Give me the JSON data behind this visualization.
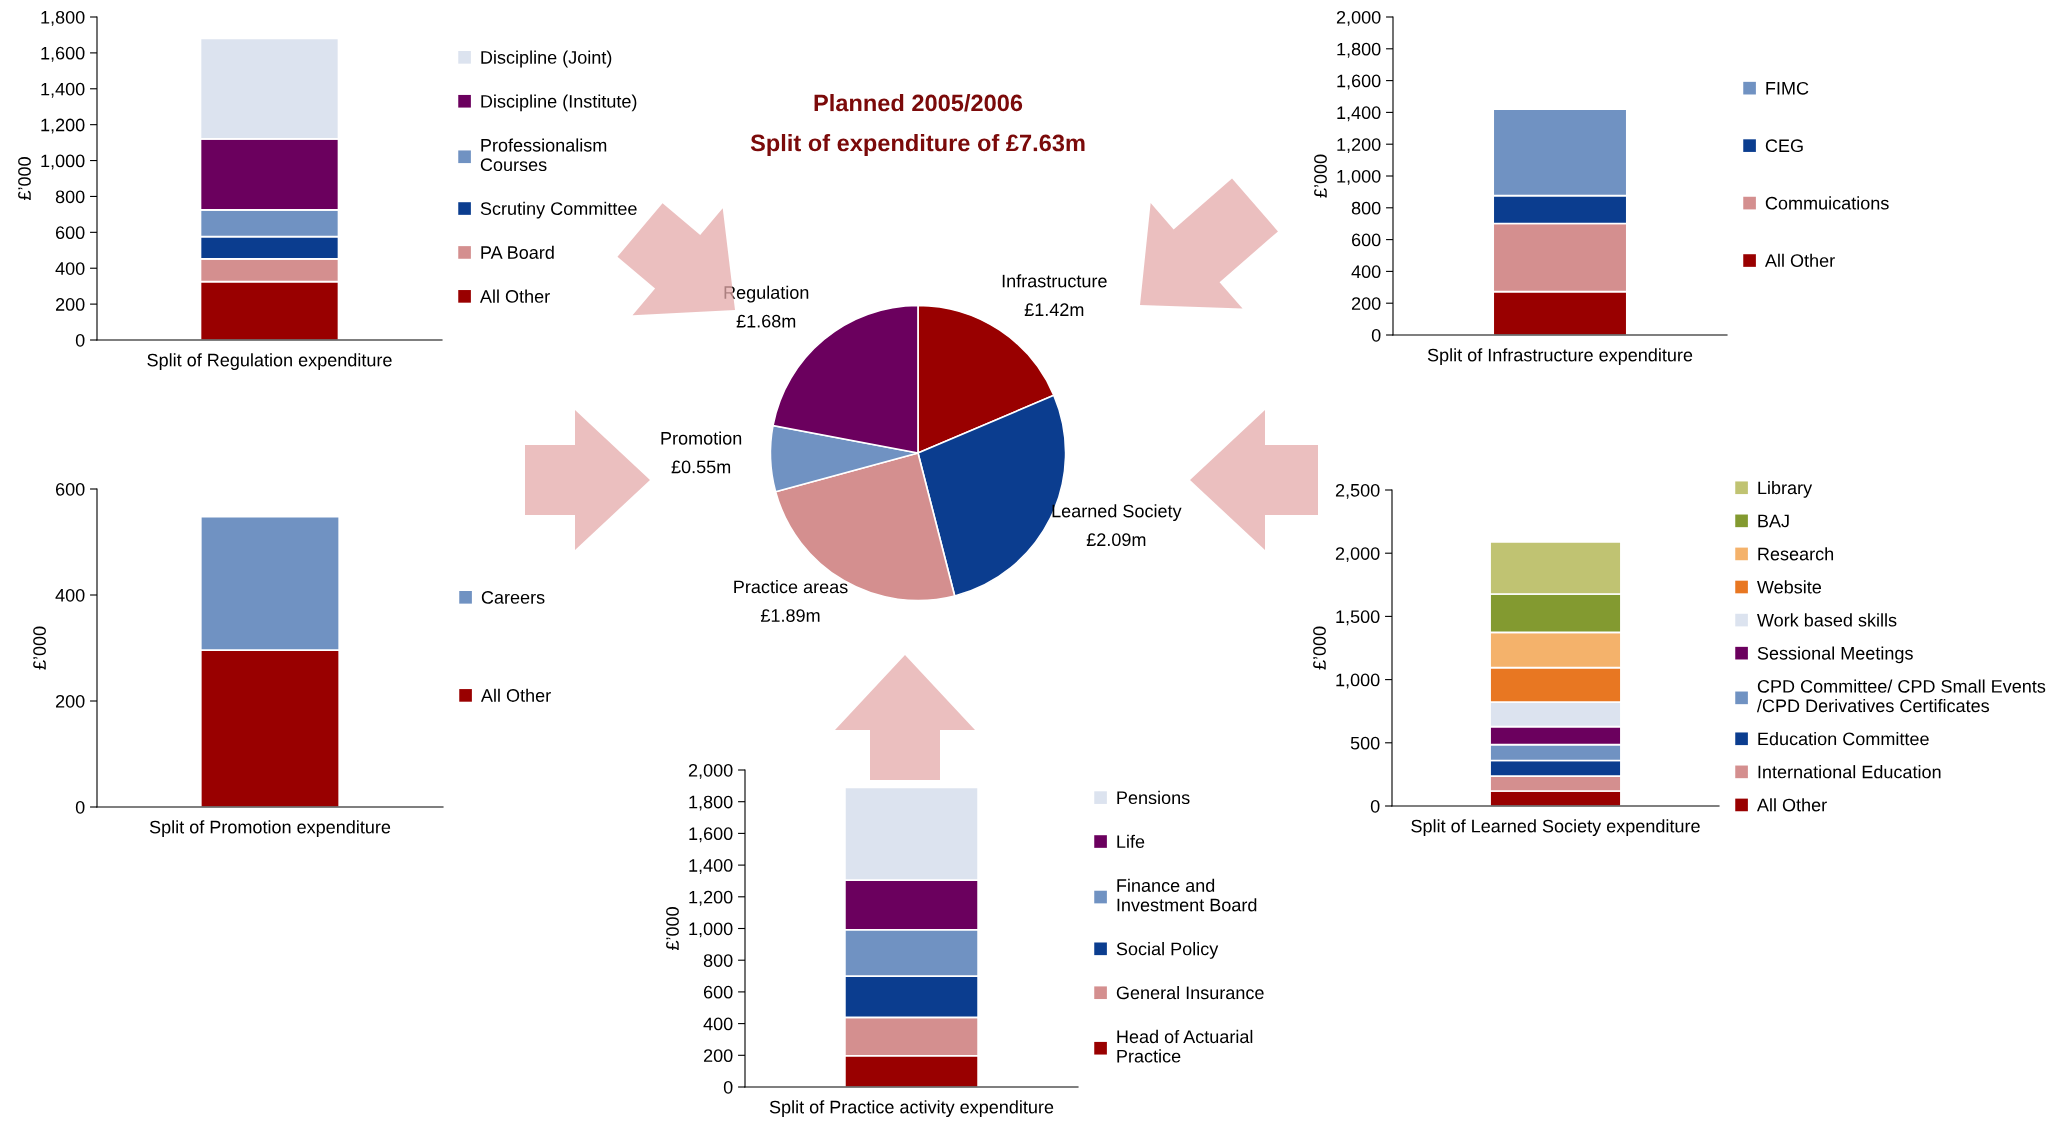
{
  "chart_data": [
    {
      "type": "bar",
      "stacked": true,
      "categories": [
        null
      ],
      "xlabel": "Split of Regulation expenditure",
      "ylabel": "£’000",
      "ylim": [
        0,
        1800
      ],
      "yticks": [
        0,
        200,
        400,
        600,
        800,
        {
          "value": 1000,
          "label": "1,000"
        },
        {
          "value": 1200,
          "label": "1,200"
        },
        {
          "value": 1400,
          "label": "1,400"
        },
        {
          "value": 1600,
          "label": "1,600"
        },
        {
          "value": 1800,
          "label": "1,800"
        }
      ],
      "legend": "right",
      "series": [
        {
          "name": "All Other",
          "color": "#990000",
          "values": [
            325
          ]
        },
        {
          "name": "PA Board",
          "color": "#d48f8f",
          "values": [
            127
          ]
        },
        {
          "name": "Scrutiny Committee",
          "color": "#0b3d8f",
          "values": [
            124
          ]
        },
        {
          "name": "Professionalism\nCourses",
          "color": "#7092c2",
          "values": [
            149
          ]
        },
        {
          "name": "Discipline (Institute)",
          "color": "#6b005e",
          "values": [
            396
          ]
        },
        {
          "name": "Discipline (Joint)",
          "color": "#dce3ef",
          "values": [
            559
          ]
        }
      ]
    },
    {
      "type": "pie",
      "title": "Planned 2005/2006",
      "subtitle": "Split of expenditure of £7.63m",
      "categories": [
        "Infrastructure",
        "Learned Society",
        "Practice areas",
        "Promotion",
        "Regulation"
      ],
      "values": [
        1.42,
        2.09,
        1.89,
        0.55,
        1.68
      ],
      "value_labels": [
        "£1.42m",
        "£2.09m",
        "£1.89m",
        "£0.55m",
        "£1.68m"
      ],
      "colors": [
        "#990000",
        "#0b3d8f",
        "#d48f8f",
        "#7092c2",
        "#6b005e"
      ]
    },
    {
      "type": "bar",
      "stacked": true,
      "categories": [
        null
      ],
      "xlabel": "Split of Infrastructure expenditure",
      "ylabel": "£’000",
      "ylim": [
        0,
        2000
      ],
      "yticks": [
        0,
        200,
        400,
        600,
        800,
        {
          "value": 1000,
          "label": "1,000"
        },
        {
          "value": 1200,
          "label": "1,200"
        },
        {
          "value": 1400,
          "label": "1,400"
        },
        {
          "value": 1600,
          "label": "1,600"
        },
        {
          "value": 1800,
          "label": "1,800"
        },
        {
          "value": 2000,
          "label": "2,000"
        }
      ],
      "legend": "right",
      "series": [
        {
          "name": "All Other",
          "color": "#990000",
          "values": [
            273
          ]
        },
        {
          "name": "Commuications",
          "color": "#d48f8f",
          "values": [
            428
          ]
        },
        {
          "name": "CEG",
          "color": "#0b3d8f",
          "values": [
            176
          ]
        },
        {
          "name": "FIMC",
          "color": "#7092c2",
          "values": [
            543
          ]
        }
      ]
    },
    {
      "type": "bar",
      "stacked": true,
      "categories": [
        null
      ],
      "xlabel": "Split of Promotion expenditure",
      "ylabel": "£’000",
      "ylim": [
        0,
        600
      ],
      "yticks": [
        0,
        200,
        400,
        600
      ],
      "legend": "right",
      "series": [
        {
          "name": "All Other",
          "color": "#990000",
          "values": [
            296
          ]
        },
        {
          "name": "Careers",
          "color": "#7092c2",
          "values": [
            252
          ]
        }
      ]
    },
    {
      "type": "bar",
      "stacked": true,
      "categories": [
        null
      ],
      "xlabel": "Split of Learned Society expenditure",
      "ylabel": "£’000",
      "ylim": [
        0,
        2500
      ],
      "yticks": [
        0,
        500,
        {
          "value": 1000,
          "label": "1,000"
        },
        {
          "value": 1500,
          "label": "1,500"
        },
        {
          "value": 2000,
          "label": "2,000"
        },
        {
          "value": 2500,
          "label": "2,500"
        }
      ],
      "legend": "right",
      "series": [
        {
          "name": "All Other",
          "color": "#990000",
          "values": [
            119
          ]
        },
        {
          "name": "International Education",
          "color": "#d48f8f",
          "values": [
            118
          ]
        },
        {
          "name": "Education Committee",
          "color": "#0b3d8f",
          "values": [
            123
          ]
        },
        {
          "name": "CPD Committee/ CPD Small Events\n/CPD Derivatives Certificates",
          "color": "#7092c2",
          "values": [
            126
          ]
        },
        {
          "name": "Sessional Meetings",
          "color": "#6b005e",
          "values": [
            142
          ]
        },
        {
          "name": "Work based skills",
          "color": "#dce3ef",
          "values": [
            195
          ]
        },
        {
          "name": "Website",
          "color": "#e87722",
          "values": [
            272
          ]
        },
        {
          "name": "Research",
          "color": "#f4b26b",
          "values": [
            279
          ]
        },
        {
          "name": "BAJ",
          "color": "#839a30",
          "values": [
            303
          ]
        },
        {
          "name": "Library",
          "color": "#c0c372",
          "values": [
            413
          ]
        }
      ]
    },
    {
      "type": "bar",
      "stacked": true,
      "categories": [
        null
      ],
      "xlabel": "Split of Practice activity expenditure",
      "ylabel": "£’000",
      "ylim": [
        0,
        2000
      ],
      "yticks": [
        0,
        200,
        400,
        600,
        800,
        {
          "value": 1000,
          "label": "1,000"
        },
        {
          "value": 1200,
          "label": "1,200"
        },
        {
          "value": 1400,
          "label": "1,400"
        },
        {
          "value": 1600,
          "label": "1,600"
        },
        {
          "value": 1800,
          "label": "1,800"
        },
        {
          "value": 2000,
          "label": "2,000"
        }
      ],
      "legend": "right",
      "series": [
        {
          "name": "Head of Actuarial\nPractice",
          "color": "#990000",
          "values": [
            197
          ]
        },
        {
          "name": "General Insurance",
          "color": "#d48f8f",
          "values": [
            242
          ]
        },
        {
          "name": "Social Policy",
          "color": "#0b3d8f",
          "values": [
            261
          ]
        },
        {
          "name": "Finance and\nInvestment Board",
          "color": "#7092c2",
          "values": [
            292
          ]
        },
        {
          "name": "Life",
          "color": "#6b005e",
          "values": [
            313
          ]
        },
        {
          "name": "Pensions",
          "color": "#dce3ef",
          "values": [
            585
          ]
        }
      ]
    }
  ]
}
